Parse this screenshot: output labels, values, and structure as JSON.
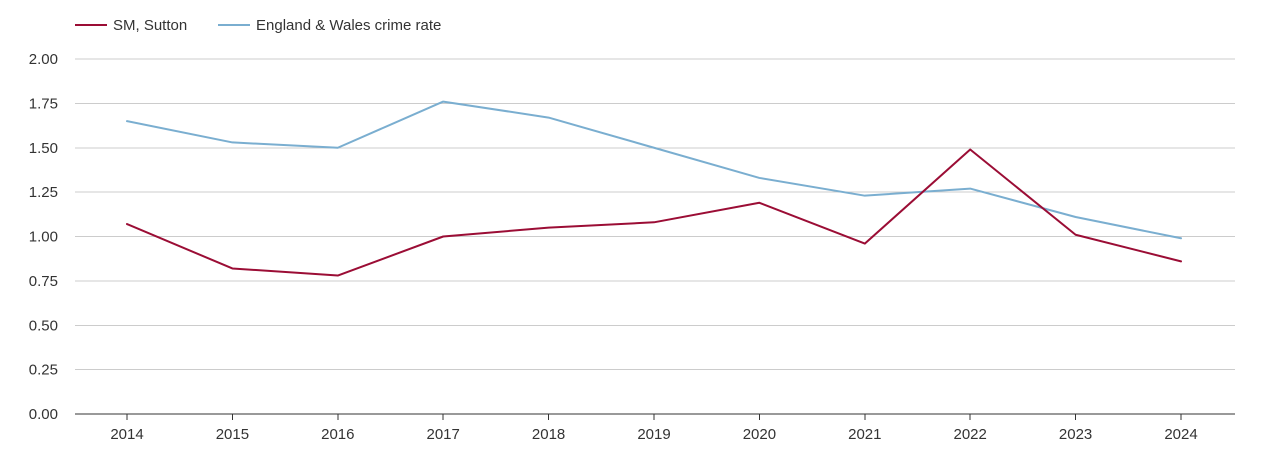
{
  "chart_data": {
    "type": "line",
    "title": "",
    "xlabel": "",
    "ylabel": "",
    "categories": [
      "2014",
      "2015",
      "2016",
      "2017",
      "2018",
      "2019",
      "2020",
      "2021",
      "2022",
      "2023",
      "2024"
    ],
    "ylim": [
      0,
      2
    ],
    "yticks": [
      "0.00",
      "0.25",
      "0.50",
      "0.75",
      "1.00",
      "1.25",
      "1.50",
      "1.75",
      "2.00"
    ],
    "grid": true,
    "legend_position": "top-left",
    "series": [
      {
        "name": "SM, Sutton",
        "color": "#9b0d35",
        "values": [
          1.07,
          0.82,
          0.78,
          1.0,
          1.05,
          1.08,
          1.19,
          0.96,
          1.49,
          1.01,
          0.86
        ]
      },
      {
        "name": "England & Wales crime rate",
        "color": "#7aaed0",
        "values": [
          1.65,
          1.53,
          1.5,
          1.76,
          1.67,
          1.5,
          1.33,
          1.23,
          1.27,
          1.11,
          0.99
        ]
      }
    ]
  }
}
